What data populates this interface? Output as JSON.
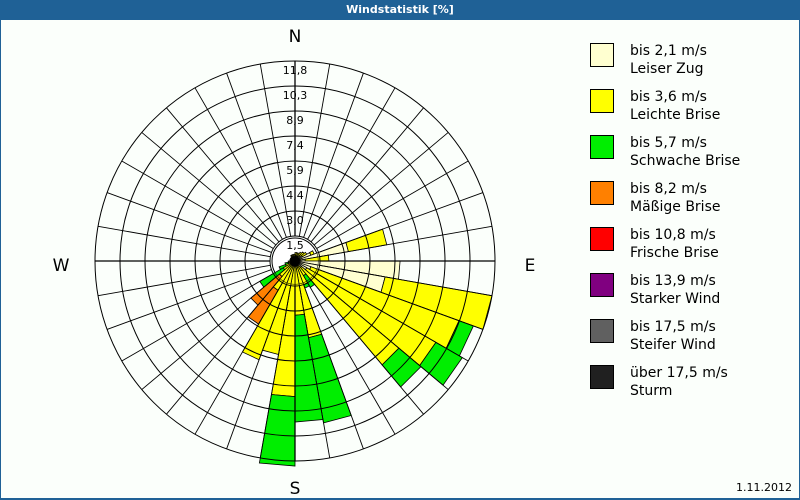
{
  "header": {
    "title": "Windstatistik [%]"
  },
  "footer": {
    "date": "1.11.2012"
  },
  "compass": {
    "n": "N",
    "e": "E",
    "s": "S",
    "w": "W"
  },
  "legend": [
    {
      "speed": "bis 2,1 m/s",
      "name": "Leiser Zug",
      "color": "#ffffd0"
    },
    {
      "speed": "bis 3,6 m/s",
      "name": "Leichte Brise",
      "color": "#ffff00"
    },
    {
      "speed": "bis 5,7 m/s",
      "name": "Schwache Brise",
      "color": "#00ee00"
    },
    {
      "speed": "bis 8,2 m/s",
      "name": "Mäßige Brise",
      "color": "#ff8000"
    },
    {
      "speed": "bis 10,8 m/s",
      "name": "Frische Brise",
      "color": "#ff0000"
    },
    {
      "speed": "bis 13,9 m/s",
      "name": "Starker Wind",
      "color": "#800080"
    },
    {
      "speed": "bis 17,5 m/s",
      "name": "Steifer Wind",
      "color": "#606060"
    },
    {
      "speed": "über 17,5 m/s",
      "name": "Sturm",
      "color": "#202020"
    }
  ],
  "chart_data": {
    "type": "wind-rose",
    "title": "Windstatistik [%]",
    "unit": "%",
    "ring_labels": [
      "1,5",
      "3,0",
      "4,4",
      "5,9",
      "7,4",
      "8,9",
      "10,3",
      "11,8"
    ],
    "rmax": 11.8,
    "sector_width_deg": 10,
    "series_names": [
      "bis 2,1 m/s",
      "bis 3,6 m/s",
      "bis 5,7 m/s",
      "bis 8,2 m/s"
    ],
    "sectors": [
      {
        "start": 0,
        "cum": [
          0.3,
          0.5
        ]
      },
      {
        "start": 10,
        "cum": [
          0.3,
          0.5
        ]
      },
      {
        "start": 20,
        "cum": [
          0.3,
          0.5
        ]
      },
      {
        "start": 30,
        "cum": [
          0.3,
          0.6
        ]
      },
      {
        "start": 40,
        "cum": [
          0.4,
          0.7
        ]
      },
      {
        "start": 50,
        "cum": [
          0.5,
          0.8
        ]
      },
      {
        "start": 60,
        "cum": [
          1.0,
          1.2
        ]
      },
      {
        "start": 70,
        "cum": [
          3.2,
          5.5
        ]
      },
      {
        "start": 80,
        "cum": [
          0.6,
          2.0
        ]
      },
      {
        "start": 90,
        "cum": [
          6.2,
          6.2
        ]
      },
      {
        "start": 100,
        "cum": [
          5.4,
          11.8
        ]
      },
      {
        "start": 110,
        "cum": [
          1.0,
          10.3,
          11.2
        ]
      },
      {
        "start": 120,
        "cum": [
          0.8,
          9.6,
          11.4
        ]
      },
      {
        "start": 130,
        "cum": [
          0.5,
          8.0,
          9.7
        ]
      },
      {
        "start": 140,
        "cum": [
          0.3,
          1.0,
          1.8
        ]
      },
      {
        "start": 150,
        "cum": [
          0.3,
          1.5,
          1.7
        ]
      },
      {
        "start": 160,
        "cum": [
          0.3,
          4.6,
          9.7
        ]
      },
      {
        "start": 170,
        "cum": [
          0.3,
          3.2,
          9.5
        ]
      },
      {
        "start": 180,
        "cum": [
          0.3,
          8.0,
          12.1
        ]
      },
      {
        "start": 190,
        "cum": [
          0.3,
          5.6,
          5.6
        ]
      },
      {
        "start": 200,
        "cum": [
          0.3,
          6.2,
          6.2
        ]
      },
      {
        "start": 210,
        "cum": [
          0.3,
          2.0,
          2.0,
          4.3
        ]
      },
      {
        "start": 220,
        "cum": [
          0.3,
          1.2,
          1.2,
          3.4
        ]
      },
      {
        "start": 230,
        "cum": [
          0.3,
          0.8,
          2.4
        ]
      },
      {
        "start": 240,
        "cum": [
          0.3,
          0.6,
          1.0
        ]
      },
      {
        "start": 250,
        "cum": [
          0.2,
          0.4,
          0.6
        ]
      },
      {
        "start": 260,
        "cum": [
          0.2,
          0.4
        ]
      },
      {
        "start": 270,
        "cum": [
          0.2,
          0.3
        ]
      },
      {
        "start": 280,
        "cum": [
          0.2,
          0.3
        ]
      },
      {
        "start": 290,
        "cum": [
          0.2,
          0.3
        ]
      },
      {
        "start": 300,
        "cum": [
          0.2,
          0.3
        ]
      },
      {
        "start": 310,
        "cum": [
          0.2,
          0.3
        ]
      },
      {
        "start": 320,
        "cum": [
          0.2,
          0.4
        ]
      },
      {
        "start": 330,
        "cum": [
          0.2,
          0.4
        ]
      },
      {
        "start": 340,
        "cum": [
          0.2,
          0.4
        ]
      },
      {
        "start": 350,
        "cum": [
          0.2,
          0.4
        ]
      }
    ]
  }
}
